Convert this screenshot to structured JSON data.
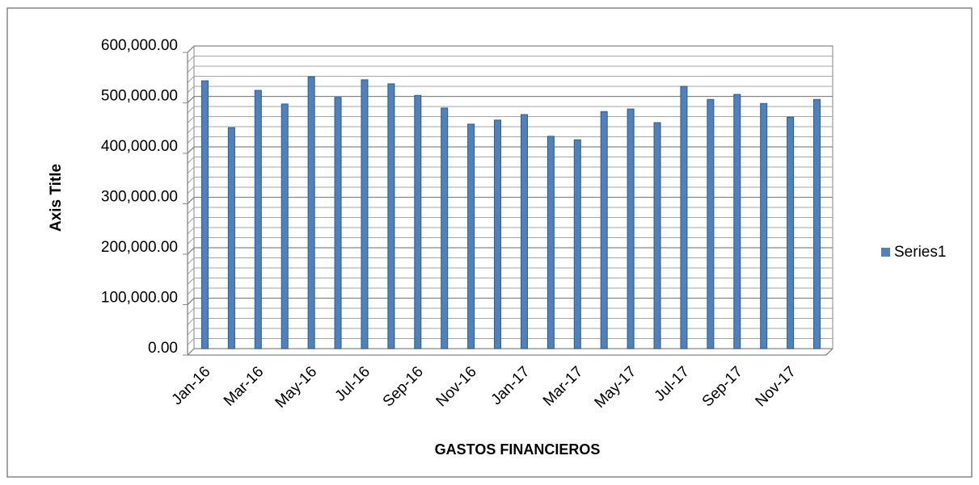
{
  "chart_data": {
    "type": "bar",
    "x_axis_title": "GASTOS FINANCIEROS",
    "y_axis_title": "Axis Title",
    "categories": [
      "Jan-16",
      null,
      "Mar-16",
      null,
      "May-16",
      null,
      "Jul-16",
      null,
      "Sep-16",
      null,
      "Nov-16",
      null,
      "Jan-17",
      null,
      "Mar-17",
      null,
      "May-17",
      null,
      "Jul-17",
      null,
      "Sep-17",
      null,
      "Nov-17",
      null
    ],
    "series": [
      {
        "name": "Series1",
        "color": "#4f81bd",
        "values": [
          531000,
          438000,
          512000,
          485000,
          539000,
          498000,
          533000,
          525000,
          502000,
          477000,
          445000,
          453000,
          464000,
          421000,
          414000,
          470000,
          475000,
          448000,
          520000,
          494000,
          504000,
          486000,
          459000,
          494000
        ]
      }
    ],
    "ylim": [
      0,
      600000
    ],
    "yticks": [
      {
        "value": 0,
        "label": "0.00"
      },
      {
        "value": 100000,
        "label": "100,000.00"
      },
      {
        "value": 200000,
        "label": "200,000.00"
      },
      {
        "value": 300000,
        "label": "300,000.00"
      },
      {
        "value": 400000,
        "label": "400,000.00"
      },
      {
        "value": 500000,
        "label": "500,000.00"
      },
      {
        "value": 600000,
        "label": "600,000.00"
      }
    ],
    "minor_yticks": [
      20000,
      40000,
      60000,
      80000,
      120000,
      140000,
      160000,
      180000,
      220000,
      240000,
      260000,
      280000,
      320000,
      340000,
      360000,
      380000,
      420000,
      440000,
      460000,
      480000,
      520000,
      540000,
      560000,
      580000
    ],
    "grid": true,
    "legend": "right"
  }
}
